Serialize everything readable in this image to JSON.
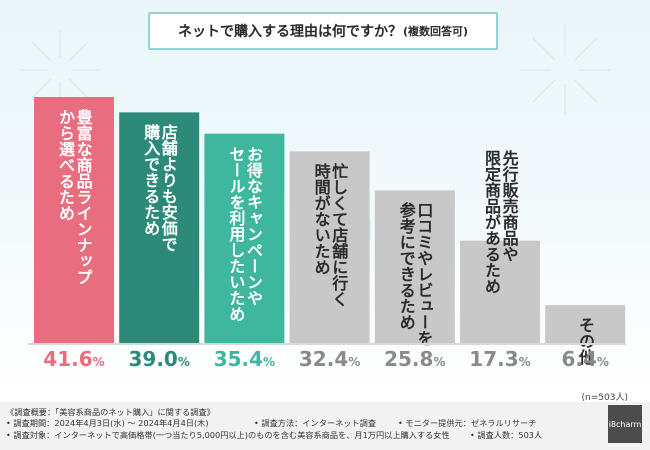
{
  "title": {
    "main": "ネットで購入する理由は何ですか？",
    "sub": "(複数回答可)"
  },
  "chart_data": {
    "type": "bar",
    "title": "ネットで購入する理由は何ですか？(複数回答可)",
    "ylim": [
      0,
      45
    ],
    "categories": [
      "豊富な商品ラインナップから選べるため",
      "店舗よりも安価で購入できるため",
      "お得なキャンペーンやセールを利用したいため",
      "忙しくて店舗に行く時間がないため",
      "口コミやレビューを参考にできるため",
      "先行販売商品や限定商品があるため",
      "その他"
    ],
    "label_lines": [
      [
        "豊富な商品ラインナップ",
        "から選べるため"
      ],
      [
        "店舗よりも安価で",
        "購入できるため"
      ],
      [
        "お得なキャンペーンや",
        "セールを利用したいため"
      ],
      [
        "忙しくて店舗に行く",
        "時間がないため"
      ],
      [
        "口コミやレビューを",
        "参考にできるため"
      ],
      [
        "先行販売商品や",
        "限定商品があるため"
      ],
      [
        "その他"
      ]
    ],
    "values": [
      41.6,
      39.0,
      35.4,
      32.4,
      25.8,
      17.3,
      6.4
    ],
    "value_labels": [
      "41.6",
      "39.0",
      "35.4",
      "32.4",
      "25.8",
      "17.3",
      "6.4"
    ],
    "unit": "%",
    "colors": [
      "#e86d7f",
      "#2d8a78",
      "#3fb79e",
      "#c8c8c8",
      "#c8c8c8",
      "#c8c8c8",
      "#c8c8c8"
    ],
    "value_colors": [
      "#e86d7f",
      "#2d8a78",
      "#3fb79e",
      "#8a8a8a",
      "#8a8a8a",
      "#8a8a8a",
      "#8a8a8a"
    ]
  },
  "sample_size": "(n=503人)",
  "notes": {
    "overview": "《調査概要：「美容系商品のネット購入」に関する調査》",
    "period": "• 調査期間：2024年4月3日(水) ～ 2024年4月4日(木)",
    "method": "• 調査方法：インターネット調査",
    "provider": "• モニター提供元：ゼネラルリサーチ",
    "target": "• 調査対象：インターネットで高価格帯(一つ当たり5,000円以上)のものを含む美容系商品を、月1万円以上購入する女性",
    "count": "• 調査人数：503人"
  },
  "logo": "i8charm"
}
